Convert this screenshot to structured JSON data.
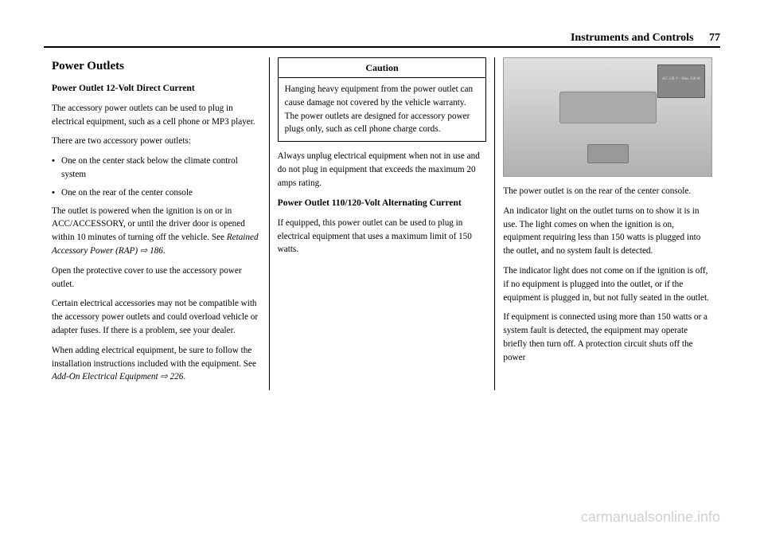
{
  "header": {
    "chapter": "Instruments and Controls",
    "page_number": "77"
  },
  "col1": {
    "section_title": "Power Outlets",
    "sub1": "Power Outlet 12-Volt Direct Current",
    "p1": "The accessory power outlets can be used to plug in electrical equipment, such as a cell phone or MP3 player.",
    "p2": "There are two accessory power outlets:",
    "b1": "One on the center stack below the climate control system",
    "b2": "One on the rear of the center console",
    "p3_a": "The outlet is powered when the ignition is on or in ACC/ACCESSORY, or until the driver door is opened within 10 minutes of turning off the vehicle. See ",
    "p3_ref": "Retained Accessory Power (RAP) ⇨ 186",
    "p3_b": ".",
    "p4": "Open the protective cover to use the accessory power outlet.",
    "p5": "Certain electrical accessories may not be compatible with the accessory power outlets and could overload vehicle or adapter fuses. If there is a problem, see your dealer.",
    "p6_a": "When adding electrical equipment, be sure to follow the installation instructions included with the equipment. See ",
    "p6_ref": "Add-On Electrical Equipment ⇨ 226",
    "p6_b": "."
  },
  "col2": {
    "caution_label": "Caution",
    "caution_body": "Hanging heavy equipment from the power outlet can cause damage not covered by the vehicle warranty. The power outlets are designed for accessory power plugs only, such as cell phone charge cords.",
    "p1": "Always unplug electrical equipment when not in use and do not plug in equipment that exceeds the maximum 20 amps rating.",
    "sub2": "Power Outlet 110/120-Volt Alternating Current",
    "p2": "If equipped, this power outlet can be used to plug in electrical equipment that uses a maximum limit of 150 watts."
  },
  "col3": {
    "inset_label": "AC 120 V - Max 150 W",
    "p1": "The power outlet is on the rear of the center console.",
    "p2": "An indicator light on the outlet turns on to show it is in use. The light comes on when the ignition is on, equipment requiring less than 150 watts is plugged into the outlet, and no system fault is detected.",
    "p3": "The indicator light does not come on if the ignition is off, if no equipment is plugged into the outlet, or if the equipment is plugged in, but not fully seated in the outlet.",
    "p4": "If equipment is connected using more than 150 watts or a system fault is detected, the equipment may operate briefly then turn off. A protection circuit shuts off the power"
  },
  "watermark": "carmanualsonline.info"
}
